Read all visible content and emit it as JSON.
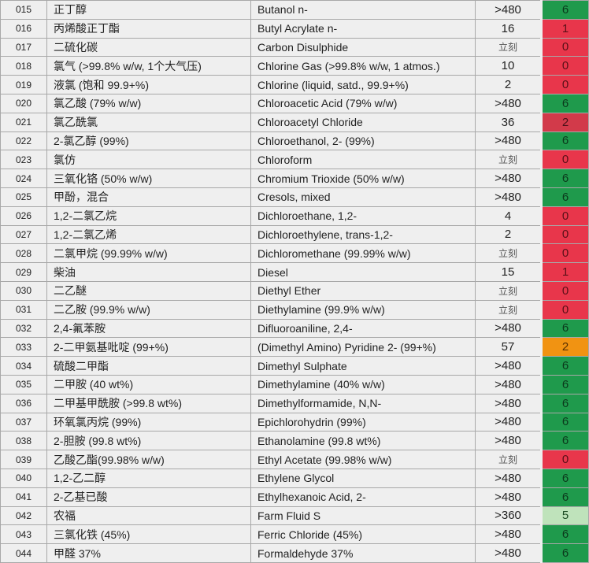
{
  "colors": {
    "green": "#1f9a4c",
    "red": "#e8364b",
    "dark_red": "#d23a4a",
    "orange": "#f19312",
    "light_green": "#bfe3bb"
  },
  "rows": [
    {
      "no": "015",
      "cn": "正丁醇",
      "en": "Butanol n-",
      "time": ">480",
      "rating": "6",
      "color": "g"
    },
    {
      "no": "016",
      "cn": "丙烯酸正丁酯",
      "en": "Butyl Acrylate n-",
      "time": "16",
      "rating": "1",
      "color": "r"
    },
    {
      "no": "017",
      "cn": "二硫化碳",
      "en": "Carbon Disulphide",
      "time": "立刻",
      "rating": "0",
      "color": "r"
    },
    {
      "no": "018",
      "cn": "氯气 (>99.8% w/w, 1个大气压)",
      "en": "Chlorine Gas (>99.8% w/w, 1 atmos.)",
      "time": "10",
      "rating": "0",
      "color": "r"
    },
    {
      "no": "019",
      "cn": "液氯 (饱和 99.9+%)",
      "en": "Chlorine (liquid, satd., 99.9+%)",
      "time": "2",
      "rating": "0",
      "color": "r"
    },
    {
      "no": "020",
      "cn": "氯乙酸 (79% w/w)",
      "en": "Chloroacetic Acid (79% w/w)",
      "time": ">480",
      "rating": "6",
      "color": "g"
    },
    {
      "no": "021",
      "cn": "氯乙酰氯",
      "en": "Chloroacetyl Chloride",
      "time": "36",
      "rating": "2",
      "color": "r2"
    },
    {
      "no": "022",
      "cn": "2-氯乙醇 (99%)",
      "en": "Chloroethanol, 2- (99%)",
      "time": ">480",
      "rating": "6",
      "color": "g"
    },
    {
      "no": "023",
      "cn": "氯仿",
      "en": "Chloroform",
      "time": "立刻",
      "rating": "0",
      "color": "r"
    },
    {
      "no": "024",
      "cn": "三氧化铬 (50% w/w)",
      "en": "Chromium Trioxide (50% w/w)",
      "time": ">480",
      "rating": "6",
      "color": "g"
    },
    {
      "no": "025",
      "cn": "甲酚，混合",
      "en": "Cresols, mixed",
      "time": ">480",
      "rating": "6",
      "color": "g"
    },
    {
      "no": "026",
      "cn": "1,2-二氯乙烷",
      "en": "Dichloroethane, 1,2-",
      "time": "4",
      "rating": "0",
      "color": "r"
    },
    {
      "no": "027",
      "cn": "1,2-二氯乙烯",
      "en": "Dichloroethylene, trans-1,2-",
      "time": "2",
      "rating": "0",
      "color": "r"
    },
    {
      "no": "028",
      "cn": "二氯甲烷 (99.99% w/w)",
      "en": "Dichloromethane (99.99% w/w)",
      "time": "立刻",
      "rating": "0",
      "color": "r"
    },
    {
      "no": "029",
      "cn": "柴油",
      "en": "Diesel",
      "time": "15",
      "rating": "1",
      "color": "r"
    },
    {
      "no": "030",
      "cn": "二乙醚",
      "en": "Diethyl Ether",
      "time": "立刻",
      "rating": "0",
      "color": "r"
    },
    {
      "no": "031",
      "cn": "二乙胺 (99.9% w/w)",
      "en": "Diethylamine (99.9% w/w)",
      "time": "立刻",
      "rating": "0",
      "color": "r"
    },
    {
      "no": "032",
      "cn": "2,4-氟苯胺",
      "en": "Difluoroaniline, 2,4-",
      "time": ">480",
      "rating": "6",
      "color": "g"
    },
    {
      "no": "033",
      "cn": "2-二甲氨基吡啶 (99+%)",
      "en": "(Dimethyl Amino) Pyridine 2- (99+%)",
      "time": "57",
      "rating": "2",
      "color": "o"
    },
    {
      "no": "034",
      "cn": "硫酸二甲酯",
      "en": "Dimethyl Sulphate",
      "time": ">480",
      "rating": "6",
      "color": "g"
    },
    {
      "no": "035",
      "cn": "二甲胺 (40 wt%)",
      "en": "Dimethylamine (40% w/w)",
      "time": ">480",
      "rating": "6",
      "color": "g"
    },
    {
      "no": "036",
      "cn": "二甲基甲酰胺 (>99.8 wt%)",
      "en": "Dimethylformamide, N,N-",
      "time": ">480",
      "rating": "6",
      "color": "g"
    },
    {
      "no": "037",
      "cn": "环氧氯丙烷 (99%)",
      "en": "Epichlorohydrin (99%)",
      "time": ">480",
      "rating": "6",
      "color": "g"
    },
    {
      "no": "038",
      "cn": "2-胆胺 (99.8 wt%)",
      "en": "Ethanolamine (99.8 wt%)",
      "time": ">480",
      "rating": "6",
      "color": "g"
    },
    {
      "no": "039",
      "cn": "乙酸乙酯(99.98% w/w)",
      "en": "Ethyl Acetate (99.98% w/w)",
      "time": "立刻",
      "rating": "0",
      "color": "r"
    },
    {
      "no": "040",
      "cn": "1,2-乙二醇",
      "en": "Ethylene Glycol",
      "time": ">480",
      "rating": "6",
      "color": "g"
    },
    {
      "no": "041",
      "cn": "2-乙基已酸",
      "en": "Ethylhexanoic Acid, 2-",
      "time": ">480",
      "rating": "6",
      "color": "g"
    },
    {
      "no": "042",
      "cn": "农福",
      "en": "Farm Fluid S",
      "time": ">360",
      "rating": "5",
      "color": "lg"
    },
    {
      "no": "043",
      "cn": "三氯化铁 (45%)",
      "en": "Ferric Chloride (45%)",
      "time": ">480",
      "rating": "6",
      "color": "g"
    },
    {
      "no": "044",
      "cn": "甲醛 37%",
      "en": "Formaldehyde 37%",
      "time": ">480",
      "rating": "6",
      "color": "g"
    }
  ]
}
